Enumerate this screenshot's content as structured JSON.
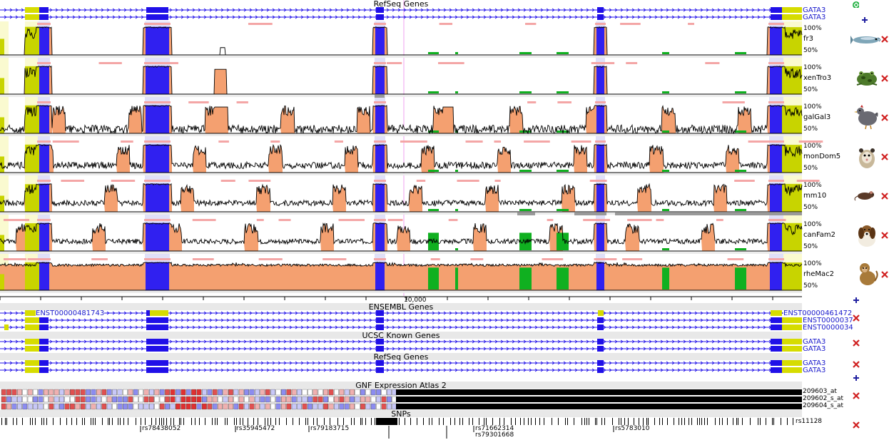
{
  "colors": {
    "exon": "#2010e8",
    "utr": "#d6dc00",
    "intron_line": "#2010e8",
    "conserved": "#f4a070",
    "conserved_exon": "#3020f0",
    "conserved_utr": "#c8d400",
    "noncoding_cons": "#10b020",
    "exon_band": "#e0e0f8",
    "utr_band": "#fafad0",
    "ecr_bar": "#f4a6a6",
    "gap_bar": "#999999",
    "header_bg": "#e8e8e8"
  },
  "tracks": {
    "refseq_top": {
      "title": "RefSeq Genes",
      "genes": [
        "GATA3",
        "GATA3"
      ]
    },
    "ensembl": {
      "title": "ENSEMBL Genes",
      "left_label": "ENST00000481743",
      "right_labels": [
        "ENST00000461472",
        "ENST0000037",
        "ENST0000034"
      ]
    },
    "ucsc": {
      "title": "UCSC Known Genes",
      "genes": [
        "GATA3",
        "GATA3"
      ]
    },
    "refseq_bottom": {
      "title": "RefSeq Genes",
      "genes": [
        "GATA3",
        "GATA3"
      ]
    },
    "gnf": {
      "title": "GNF Expression Atlas 2",
      "probes": [
        "209603_at",
        "209602_s_at",
        "209604_s_at"
      ]
    },
    "snps": {
      "title": "SNPs",
      "ids": [
        "rs78438052",
        "rs35945472",
        "rs79183715",
        "rs71662314",
        "rs79301668",
        "rs5783010",
        "rs11128"
      ]
    }
  },
  "ruler": {
    "label": "10,000"
  },
  "conservation": {
    "pct_top": "100%",
    "pct_mid": "50%",
    "species": [
      {
        "name": "fr3",
        "animal": "fish-icon"
      },
      {
        "name": "xenTro3",
        "animal": "frog-icon"
      },
      {
        "name": "galGal3",
        "animal": "chicken-icon"
      },
      {
        "name": "monDom5",
        "animal": "opossum-icon"
      },
      {
        "name": "mm10",
        "animal": "mouse-icon"
      },
      {
        "name": "canFam2",
        "animal": "dog-icon"
      },
      {
        "name": "rheMac2",
        "animal": "monkey-icon"
      }
    ]
  },
  "controls": {
    "close_icon": "close-icon",
    "add_icon": "plus-icon",
    "sync_icon": "green-arrows-icon"
  }
}
